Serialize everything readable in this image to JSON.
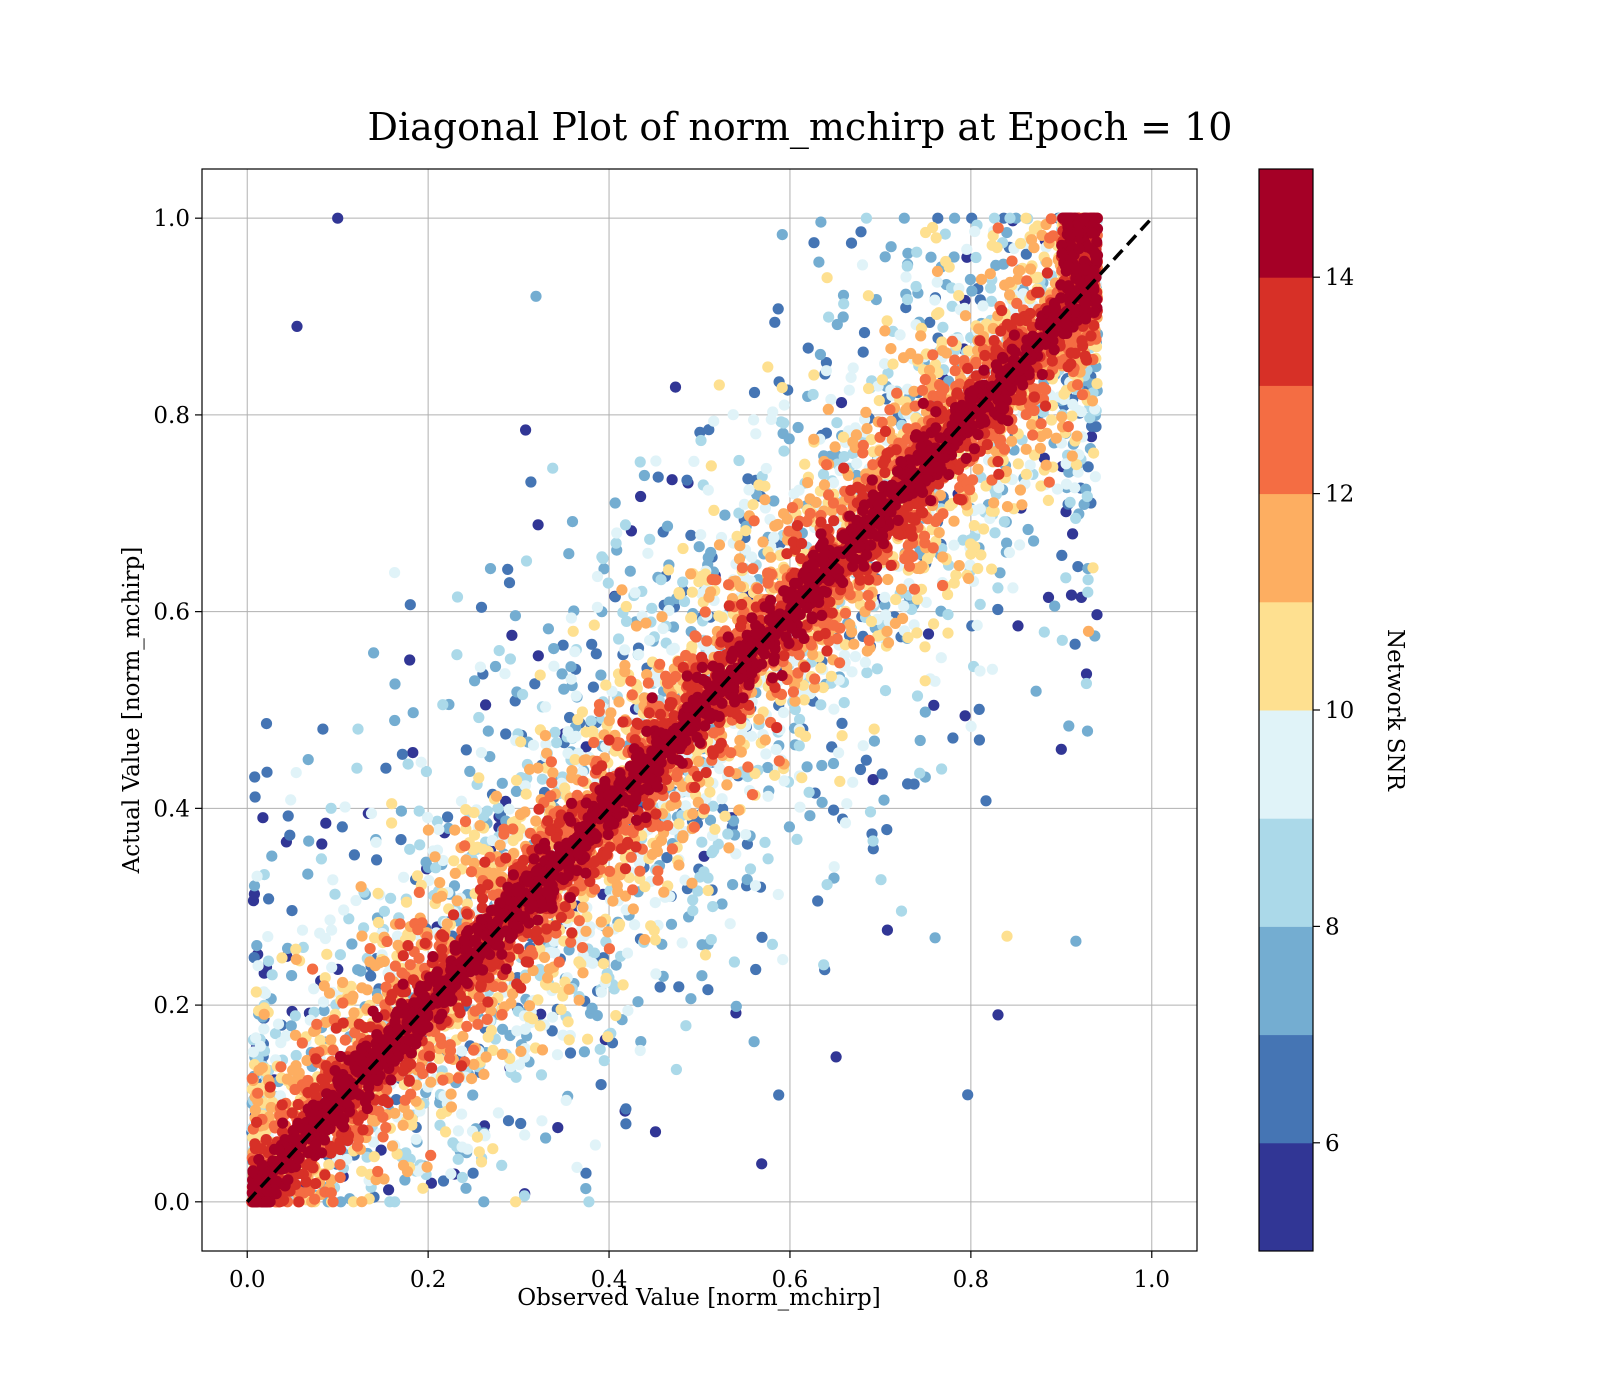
{
  "chart_data": {
    "type": "scatter",
    "title": "Diagonal Plot of norm_mchirp at Epoch = 10",
    "xlabel": "Observed Value [norm_mchirp]",
    "ylabel": "Actual Value [norm_mchirp]",
    "xlim": [
      -0.05,
      1.05
    ],
    "ylim": [
      -0.05,
      1.05
    ],
    "xticks": [
      "0.0",
      "0.2",
      "0.4",
      "0.6",
      "0.8",
      "1.0"
    ],
    "yticks": [
      "0.0",
      "0.2",
      "0.4",
      "0.6",
      "0.8",
      "1.0"
    ],
    "grid": true,
    "reference_line": {
      "x": [
        0.0,
        1.0
      ],
      "y": [
        0.0,
        1.0
      ],
      "style": "dashed",
      "color": "#000000"
    },
    "colorbar": {
      "label": "Network SNR",
      "range": [
        5,
        15
      ],
      "ticks": [
        "6",
        "8",
        "10",
        "12",
        "14"
      ],
      "bins": [
        {
          "from": 5,
          "to": 6,
          "color": "#313695"
        },
        {
          "from": 6,
          "to": 7,
          "color": "#4575b4"
        },
        {
          "from": 7,
          "to": 8,
          "color": "#74add1"
        },
        {
          "from": 8,
          "to": 9,
          "color": "#abd9e9"
        },
        {
          "from": 9,
          "to": 10,
          "color": "#e0f3f8"
        },
        {
          "from": 10,
          "to": 11,
          "color": "#fee090"
        },
        {
          "from": 11,
          "to": 12,
          "color": "#fdae61"
        },
        {
          "from": 12,
          "to": 13,
          "color": "#f46d43"
        },
        {
          "from": 13,
          "to": 14,
          "color": "#d73027"
        },
        {
          "from": 14,
          "to": 15,
          "color": "#a50026"
        }
      ]
    },
    "points_description": "Dense scatter of predicted vs actual values; high-SNR points (red) cluster tightly along the diagonal, low-SNR points (blue) spread widely; observed values range about 0.0-0.94, actual values 0.0-1.0",
    "sample_points": [
      {
        "x": 0.1,
        "y": 1.0,
        "snr": 5.5
      },
      {
        "x": 0.93,
        "y": 0.58,
        "snr": 11.5
      },
      {
        "x": 0.055,
        "y": 0.89,
        "snr": 5.5
      },
      {
        "x": 0.5,
        "y": 0.5,
        "snr": 14.5
      },
      {
        "x": 0.8,
        "y": 0.8,
        "snr": 14.5
      },
      {
        "x": 0.83,
        "y": 0.19,
        "snr": 5.5
      },
      {
        "x": 0.9,
        "y": 0.46,
        "snr": 5.5
      },
      {
        "x": 0.84,
        "y": 0.27,
        "snr": 10.5
      }
    ]
  }
}
